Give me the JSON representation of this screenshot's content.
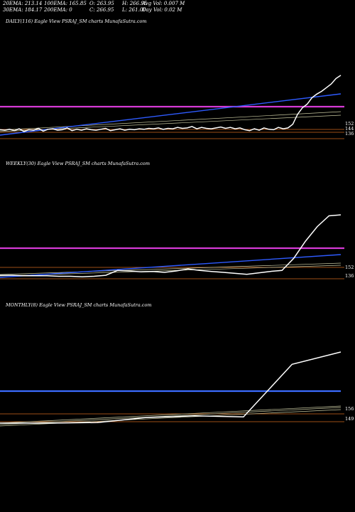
{
  "stats": {
    "ema20": "20EMA: 213.14",
    "ema100": "100EMA: 165.85",
    "open": "O: 263.95",
    "high": "H: 266.95",
    "avg_vol": "Avg Vol: 0.007 M",
    "ema30": "30EMA: 184.17",
    "ema200": "200EMA: 0",
    "close": "C: 266.95",
    "low": "L: 261.00",
    "day_vol": "Day Vol: 0.02  M"
  },
  "colors": {
    "price": "#ffffff",
    "trend": "#2e5bff",
    "resistance": "#d63ad6",
    "resistance_monthly": "#3b6bff",
    "support": "#d2691e",
    "ema_light": "#c8c8a0",
    "background": "#000000"
  },
  "chart_data": [
    {
      "type": "line",
      "title": "DAILY(116) Eagle  View  PSRAJ_SM charts MunafaSutra.com",
      "level_labels": [
        "152",
        "144",
        "136"
      ],
      "price_trend": "sideways then sharp rally to ~267",
      "series": [
        {
          "name": "",
          "values": [
            148,
            147,
            149,
            146,
            150,
            144,
            148,
            147,
            151,
            145,
            149,
            150,
            147,
            148,
            152,
            146,
            149,
            147,
            150,
            148,
            147,
            149,
            151,
            146,
            148,
            150,
            147,
            149,
            148,
            150,
            149,
            151,
            150,
            152,
            149,
            151,
            150,
            153,
            151,
            152,
            155,
            150,
            153,
            151,
            150,
            152,
            154,
            151,
            153,
            150,
            152,
            148,
            146,
            150,
            147,
            152,
            149,
            148,
            153,
            150,
            152,
            160,
            182,
            196,
            204,
            218,
            226,
            232,
            240,
            248,
            260,
            267
          ]
        }
      ]
    },
    {
      "type": "line",
      "title": "WEEKLY(30) Eagle  View  PSRAJ_SM charts MunafaSutra.com",
      "level_labels": [
        "152",
        "136"
      ],
      "series": [
        {
          "name": "",
          "values": [
            140,
            140,
            139,
            139,
            139,
            138,
            138,
            137,
            138,
            140,
            150,
            149,
            147,
            148,
            146,
            149,
            153,
            150,
            148,
            146,
            144,
            142,
            145,
            148,
            150,
            175,
            210,
            240,
            262,
            264
          ]
        }
      ]
    },
    {
      "type": "line",
      "title": "MONTHLY(8) Eagle  View  PSRAJ_SM charts MunafaSutra.com",
      "level_labels": [
        "156",
        "149"
      ],
      "series": [
        {
          "name": "",
          "values": [
            140,
            140,
            141,
            150,
            153,
            151,
            245,
            267
          ]
        }
      ]
    }
  ]
}
